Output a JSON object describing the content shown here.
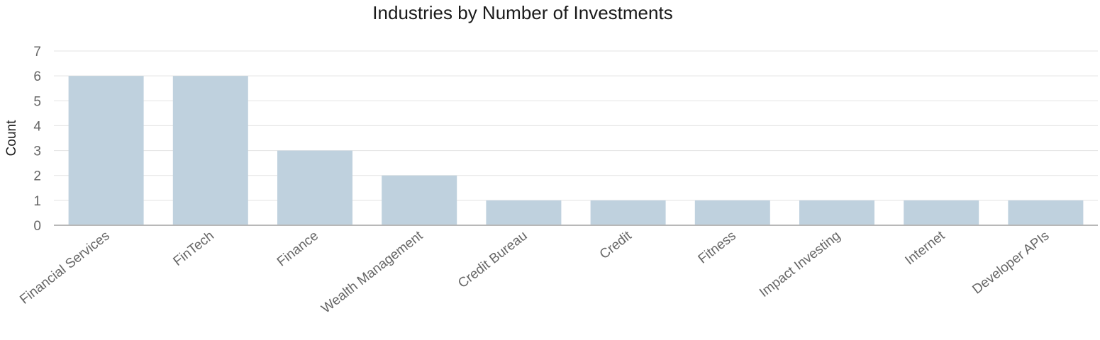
{
  "chart_data": {
    "type": "bar",
    "title": "Industries by Number of Investments",
    "xlabel": "",
    "ylabel": "Count",
    "categories": [
      "Financial Services",
      "FinTech",
      "Finance",
      "Wealth Management",
      "Credit Bureau",
      "Credit",
      "Fitness",
      "Impact Investing",
      "Internet",
      "Developer APIs"
    ],
    "values": [
      6,
      6,
      3,
      2,
      1,
      1,
      1,
      1,
      1,
      1
    ],
    "ylim": [
      0,
      7
    ],
    "yticks": [
      "0",
      "1",
      "2",
      "3",
      "4",
      "5",
      "6",
      "7"
    ],
    "grid": true,
    "legend": "none",
    "bar_color": "#bfd1de"
  }
}
